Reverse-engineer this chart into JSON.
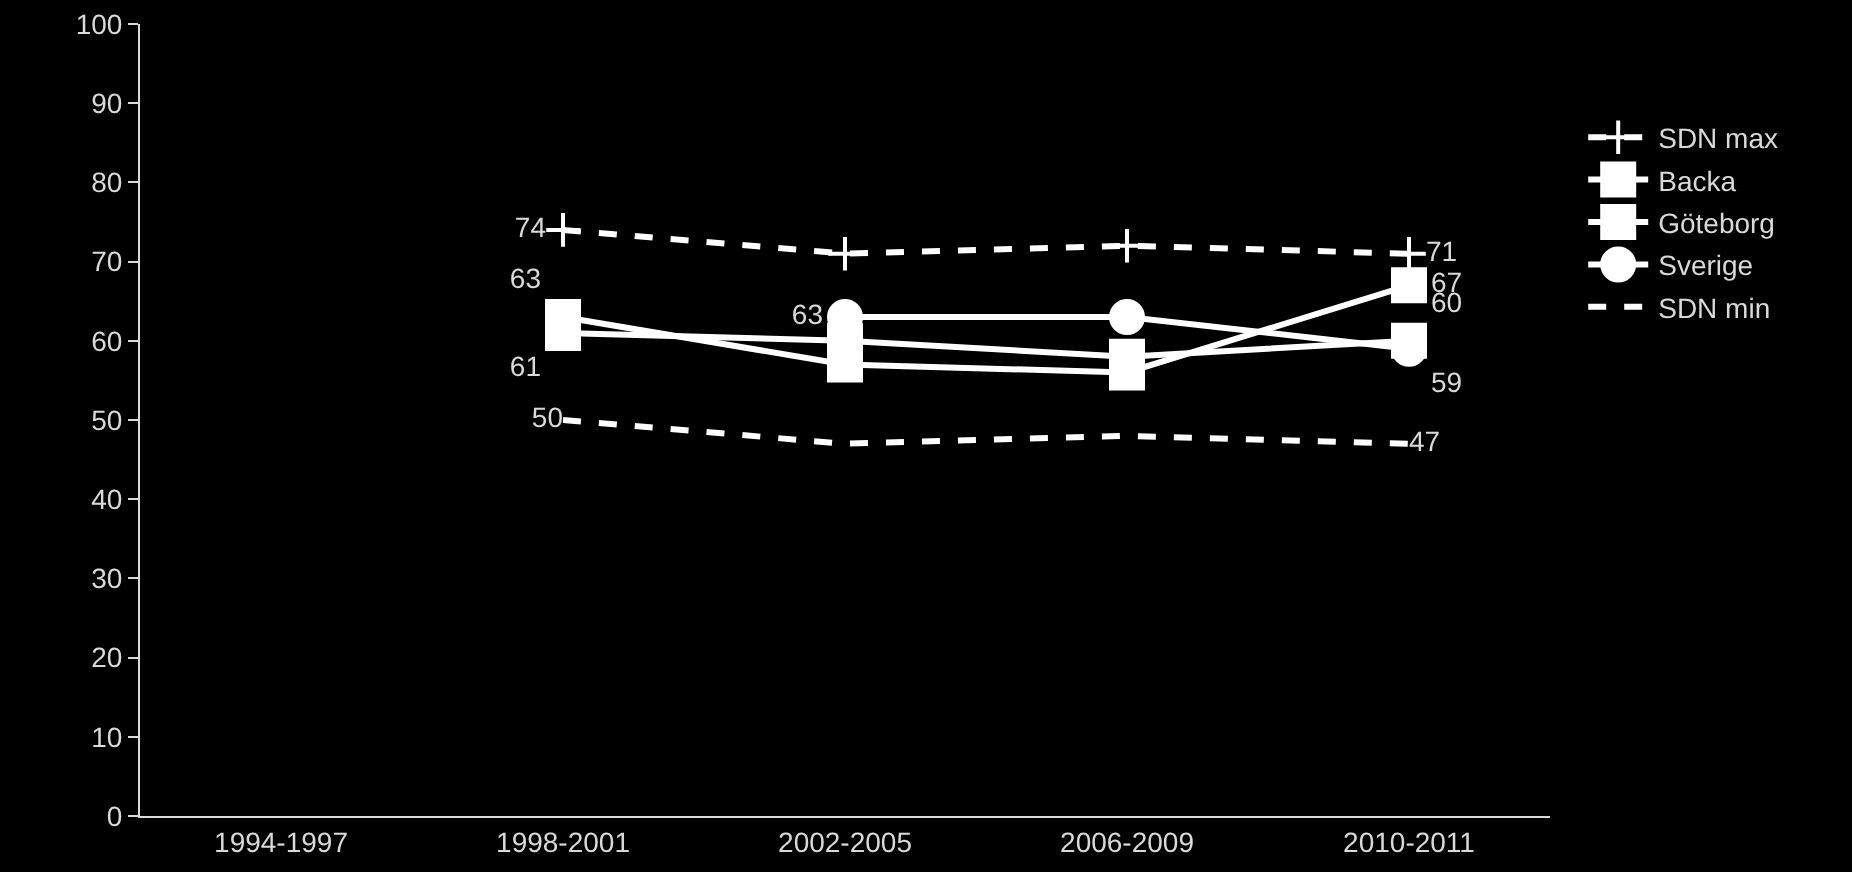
{
  "chart_data": {
    "type": "line",
    "categories": [
      "1994-1997",
      "1998-2001",
      "2002-2005",
      "2006-2009",
      "2010-2011"
    ],
    "ylim": [
      0,
      100
    ],
    "yticks": [
      0,
      10,
      20,
      30,
      40,
      50,
      60,
      70,
      80,
      90,
      100
    ],
    "grid": false,
    "legend": "right",
    "series": [
      {
        "name": "SDN max",
        "color": "#ffffff",
        "marker": "cross",
        "line_style": "dashed",
        "values": [
          null,
          74,
          71,
          72,
          71
        ],
        "value_labels": [
          null,
          "74",
          null,
          null,
          "71"
        ]
      },
      {
        "name": "Backa",
        "color": "#ffffff",
        "marker": "square",
        "line_style": "solid",
        "values": [
          null,
          63,
          57,
          56,
          67
        ],
        "value_labels": [
          null,
          "63",
          null,
          null,
          "67"
        ]
      },
      {
        "name": "Göteborg",
        "color": "#ffffff",
        "marker": "square",
        "line_style": "solid",
        "values": [
          null,
          61,
          60,
          58,
          60
        ],
        "value_labels": [
          null,
          "61",
          null,
          null,
          "60"
        ]
      },
      {
        "name": "Sverige",
        "color": "#ffffff",
        "marker": "circle",
        "line_style": "solid",
        "values": [
          null,
          null,
          63,
          63,
          59
        ],
        "value_labels": [
          null,
          null,
          "63",
          null,
          "59"
        ]
      },
      {
        "name": "SDN min",
        "color": "#ffffff",
        "marker": "none",
        "line_style": "dashed",
        "values": [
          null,
          50,
          47,
          48,
          47
        ],
        "value_labels": [
          null,
          "50",
          null,
          null,
          "47"
        ]
      }
    ]
  }
}
